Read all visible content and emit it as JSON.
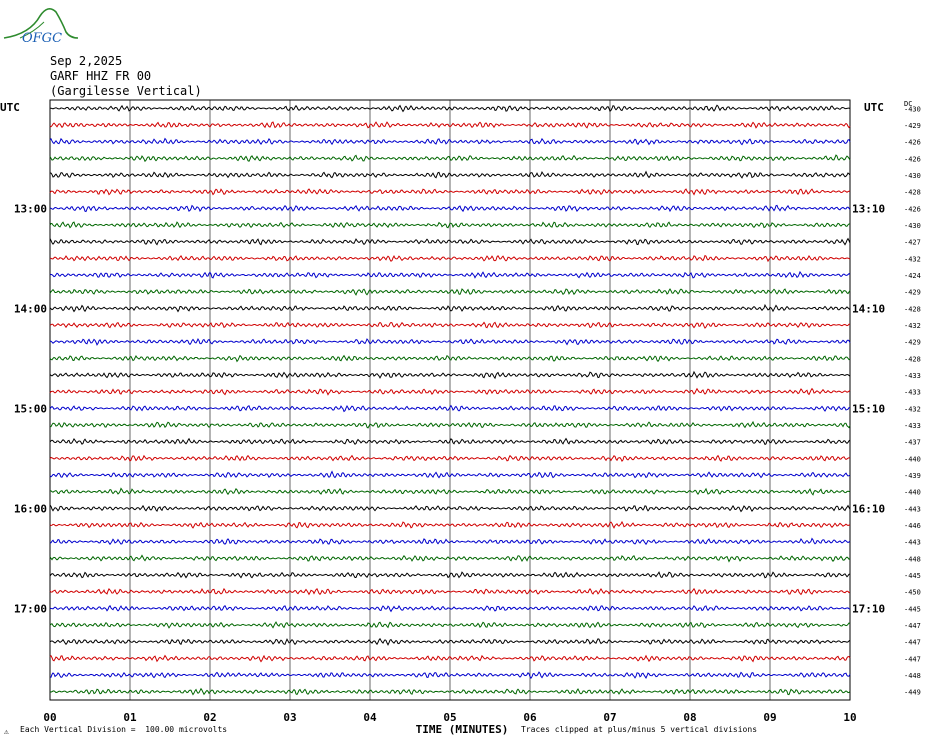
{
  "logo": {
    "text": "OFGC"
  },
  "header": {
    "date": "Sep 2,2025",
    "station": "GARF HHZ FR 00",
    "location": "(Gargilesse Vertical)"
  },
  "colors": {
    "trace_cycle": [
      "#000000",
      "#d00000",
      "#0000cc",
      "#006600"
    ],
    "grid": "#000000",
    "logo_green": "#2e8b2e",
    "logo_blue": "#1a5fb4"
  },
  "chart_data": {
    "type": "line",
    "subtype": "helicorder",
    "title": "",
    "xlabel": "TIME (MINUTES)",
    "x_ticks": [
      "00",
      "01",
      "02",
      "03",
      "04",
      "05",
      "06",
      "07",
      "08",
      "09",
      "10"
    ],
    "xlim": [
      0,
      10
    ],
    "left_axis_title": "UTC",
    "right_axis_title": "UTC",
    "right_offset_title": "DC",
    "left_hour_labels": [
      {
        "row": 6,
        "label": "13:00"
      },
      {
        "row": 12,
        "label": "14:00"
      },
      {
        "row": 18,
        "label": "15:00"
      },
      {
        "row": 24,
        "label": "16:00"
      },
      {
        "row": 30,
        "label": "17:00"
      }
    ],
    "right_hour_labels": [
      {
        "row": 6,
        "label": "13:10"
      },
      {
        "row": 12,
        "label": "14:10"
      },
      {
        "row": 18,
        "label": "15:10"
      },
      {
        "row": 24,
        "label": "16:10"
      },
      {
        "row": 30,
        "label": "17:10"
      }
    ],
    "row_count": 36,
    "dc_offsets": [
      -430,
      -429,
      -426,
      -426,
      -430,
      -428,
      -426,
      -430,
      -427,
      -432,
      -424,
      -429,
      -428,
      -432,
      -429,
      -428,
      -433,
      -433,
      -432,
      -433,
      -437,
      -440,
      -439,
      -440,
      -443,
      -446,
      -443,
      -448,
      -445,
      -450,
      -445,
      -447,
      -447,
      -447,
      -448,
      -449
    ],
    "footer_left": "Each Vertical Division =  100.00 microvolts",
    "footer_right": "Traces clipped at plus/minus 5 vertical divisions"
  }
}
